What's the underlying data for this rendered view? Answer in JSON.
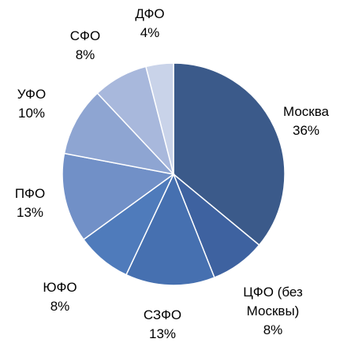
{
  "chart_data": {
    "type": "pie",
    "categories": [
      "Москва",
      "ЦФО (без Москвы)",
      "СЗФО",
      "ЮФО",
      "ПФО",
      "УФО",
      "СФО",
      "ДФО"
    ],
    "values": [
      36,
      8,
      13,
      8,
      13,
      10,
      8,
      4
    ],
    "value_labels": [
      "36%",
      "8%",
      "13%",
      "8%",
      "13%",
      "10%",
      "8%",
      "4%"
    ],
    "colors": [
      "#3b5a8a",
      "#3e62a0",
      "#4670b0",
      "#4f7bbb",
      "#7190c7",
      "#8ea5d2",
      "#a8b8dc",
      "#c9d3e9"
    ]
  }
}
